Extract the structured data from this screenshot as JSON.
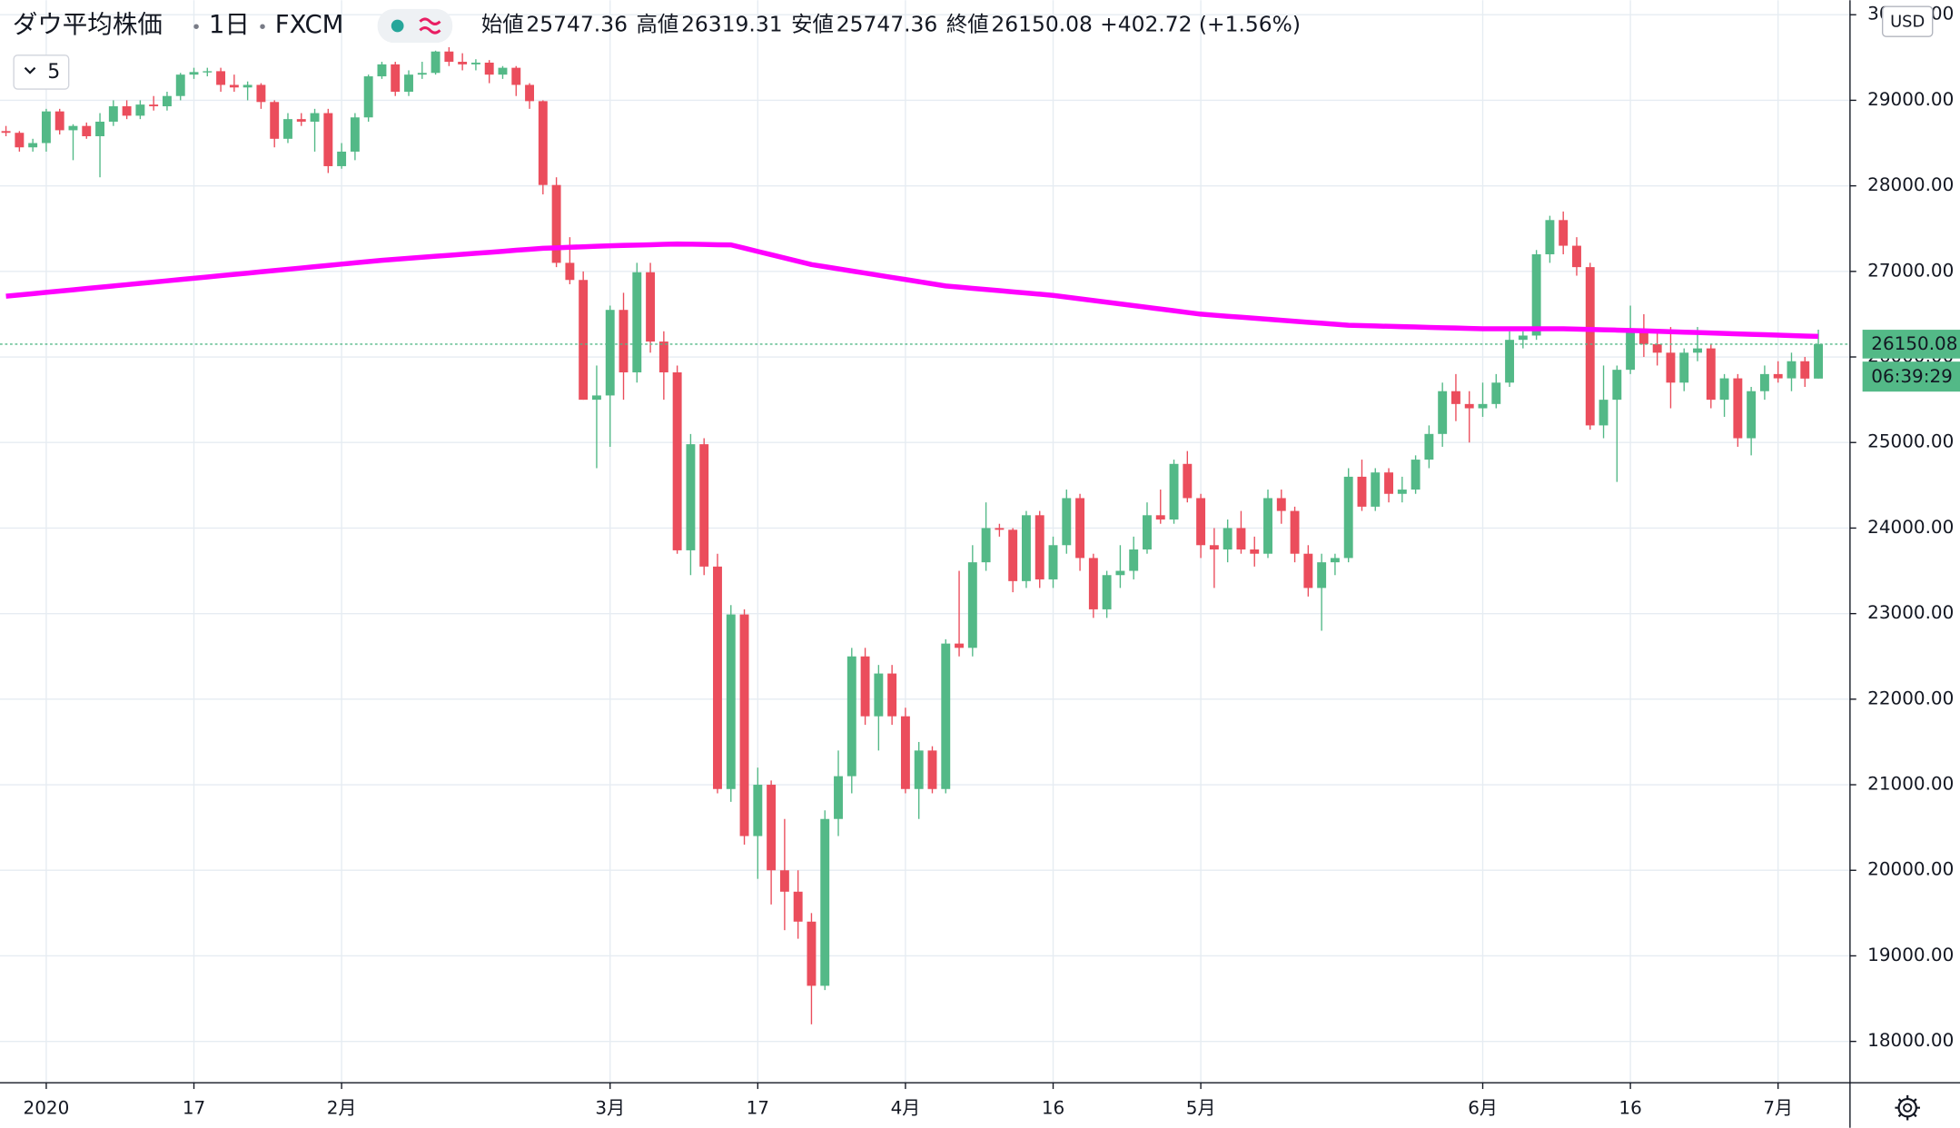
{
  "chart_data": {
    "type": "candlestick",
    "title": "ダウ平均株価",
    "interval": "1日",
    "source": "FXCM",
    "currency": "USD",
    "indicator_count": 5,
    "legend_labels": {
      "open": "始値",
      "high": "高値",
      "low": "安値",
      "close": "終値"
    },
    "change": "+402.72 (+1.56%)",
    "countdown": "06:39:29",
    "up_color": "#53b987",
    "down_color": "#eb4d5c",
    "grid": true,
    "ylim": [
      17517,
      30169
    ],
    "yticks": [
      {
        "value": 18000,
        "label": "18000.00"
      },
      {
        "value": 19000,
        "label": "19000.00"
      },
      {
        "value": 20000,
        "label": "20000.00"
      },
      {
        "value": 21000,
        "label": "21000.00"
      },
      {
        "value": 22000,
        "label": "22000.00"
      },
      {
        "value": 23000,
        "label": "23000.00"
      },
      {
        "value": 24000,
        "label": "24000.00"
      },
      {
        "value": 25000,
        "label": "25000.00"
      },
      {
        "value": 26000,
        "label": "26000.00"
      },
      {
        "value": 27000,
        "label": "27000.00"
      },
      {
        "value": 28000,
        "label": "28000.00"
      },
      {
        "value": 29000,
        "label": "29000.00"
      },
      {
        "value": 30000,
        "label": "30000.00"
      }
    ],
    "categories": [
      null,
      null,
      null,
      "2020",
      null,
      null,
      null,
      null,
      null,
      null,
      null,
      null,
      null,
      null,
      "17",
      null,
      null,
      null,
      null,
      null,
      null,
      null,
      null,
      null,
      null,
      "2月",
      null,
      null,
      null,
      null,
      null,
      null,
      null,
      null,
      null,
      null,
      null,
      null,
      null,
      null,
      null,
      null,
      null,
      null,
      null,
      "3月",
      null,
      null,
      null,
      null,
      null,
      null,
      null,
      null,
      null,
      null,
      "17",
      null,
      null,
      null,
      null,
      null,
      null,
      null,
      null,
      null,
      null,
      "4月",
      null,
      null,
      null,
      null,
      null,
      null,
      null,
      null,
      null,
      null,
      "16",
      null,
      null,
      null,
      null,
      null,
      null,
      null,
      null,
      null,
      null,
      "5月",
      null,
      null,
      null,
      null,
      null,
      null,
      null,
      null,
      null,
      null,
      null,
      null,
      null,
      null,
      null,
      null,
      null,
      null,
      null,
      null,
      "6月",
      null,
      null,
      null,
      null,
      null,
      null,
      null,
      null,
      null,
      null,
      "16",
      null,
      null,
      null,
      null,
      null,
      null,
      null,
      null,
      null,
      null,
      "7月",
      null,
      null,
      null
    ],
    "open": [
      28640,
      28620,
      28450,
      28500,
      28870,
      28650,
      28700,
      28580,
      28750,
      28930,
      28820,
      28950,
      28930,
      29050,
      29300,
      29330,
      29340,
      29180,
      29150,
      29180,
      28980,
      28550,
      28780,
      28750,
      28850,
      28230,
      28400,
      28800,
      29280,
      29420,
      29100,
      29300,
      29320,
      29570,
      29450,
      29420,
      29440,
      29300,
      29380,
      29180,
      28990,
      28010,
      27100,
      26900,
      25500,
      25550,
      26550,
      25820,
      26990,
      26180,
      25820,
      23740,
      24980,
      23550,
      20950,
      22990,
      20400,
      21000,
      20000,
      19750,
      19400,
      18650,
      20600,
      21100,
      22500,
      21800,
      22300,
      21800,
      20950,
      21400,
      20950,
      22650,
      22600,
      23600,
      24000,
      23980,
      23380,
      24150,
      23400,
      23800,
      24350,
      23650,
      23050,
      23450,
      23500,
      23750,
      24150,
      24100,
      24750,
      24350,
      23800,
      23750,
      24000,
      23750,
      23700,
      24350,
      24200,
      23700,
      23300,
      23600,
      23650,
      24600,
      24250,
      24650,
      24400,
      24450,
      24800,
      25100,
      25600,
      25450,
      25400,
      25450,
      25700,
      26200,
      26250,
      27200,
      27600,
      27300,
      27050,
      25200,
      25500,
      25850,
      26300,
      26150,
      26050,
      25700,
      26050,
      26100,
      25500,
      25750,
      25050,
      25600,
      25800,
      25750,
      25950,
      25747.36
    ],
    "high": [
      28700,
      28640,
      28550,
      28900,
      28900,
      28720,
      28740,
      28850,
      29000,
      29000,
      29000,
      29050,
      29100,
      29320,
      29380,
      29380,
      29380,
      29300,
      29220,
      29200,
      29000,
      28850,
      28850,
      28900,
      28900,
      28500,
      28850,
      29300,
      29450,
      29450,
      29350,
      29450,
      29580,
      29620,
      29550,
      29480,
      29470,
      29400,
      29400,
      29200,
      29000,
      28100,
      27400,
      27000,
      25900,
      26600,
      26750,
      27100,
      27100,
      26300,
      25900,
      25100,
      25050,
      23700,
      23100,
      23050,
      21200,
      21050,
      20600,
      20000,
      19500,
      20700,
      21400,
      22600,
      22600,
      22400,
      22400,
      21900,
      21500,
      21450,
      22700,
      23500,
      23800,
      24300,
      24050,
      24000,
      24200,
      24200,
      23900,
      24450,
      24400,
      23700,
      23500,
      23800,
      23900,
      24300,
      24450,
      24800,
      24900,
      24400,
      24000,
      24100,
      24200,
      23900,
      24450,
      24450,
      24250,
      23800,
      23700,
      23700,
      24700,
      24800,
      24700,
      24700,
      24600,
      24850,
      25200,
      25700,
      25800,
      25600,
      25700,
      25800,
      26300,
      26300,
      27250,
      27650,
      27700,
      27400,
      27100,
      25900,
      25900,
      26600,
      26500,
      26300,
      26350,
      26100,
      26350,
      26150,
      25800,
      25800,
      25650,
      25900,
      25950,
      26050,
      26000,
      26319.31
    ],
    "low": [
      28580,
      28400,
      28400,
      28400,
      28600,
      28300,
      28550,
      28100,
      28700,
      28780,
      28780,
      28880,
      28880,
      29000,
      29250,
      29280,
      29100,
      29100,
      29000,
      28900,
      28450,
      28500,
      28700,
      28400,
      28150,
      28200,
      28300,
      28750,
      29250,
      29050,
      29050,
      29250,
      29300,
      29400,
      29350,
      29350,
      29200,
      29250,
      29050,
      28900,
      27900,
      27050,
      26850,
      25500,
      24700,
      24950,
      25500,
      25700,
      26050,
      25500,
      23700,
      23450,
      23450,
      20900,
      20800,
      20300,
      19900,
      19600,
      19300,
      19200,
      18200,
      18600,
      20400,
      20900,
      21700,
      21400,
      21700,
      20900,
      20600,
      20900,
      20900,
      22500,
      22500,
      23500,
      23900,
      23250,
      23300,
      23300,
      23300,
      23700,
      23500,
      22950,
      22950,
      23300,
      23400,
      23700,
      24050,
      24050,
      24300,
      23650,
      23300,
      23600,
      23700,
      23550,
      23650,
      24050,
      23600,
      23200,
      22800,
      23450,
      23600,
      24200,
      24200,
      24300,
      24300,
      24400,
      24700,
      24950,
      25250,
      25000,
      25300,
      25400,
      25650,
      26100,
      26200,
      27100,
      27200,
      26950,
      25150,
      25050,
      24540,
      25800,
      26000,
      25900,
      25400,
      25600,
      25950,
      25400,
      25300,
      24950,
      24850,
      25500,
      25700,
      25600,
      25650,
      25747.36
    ],
    "close": [
      28620,
      28450,
      28500,
      28870,
      28650,
      28700,
      28580,
      28750,
      28930,
      28820,
      28950,
      28930,
      29050,
      29300,
      29330,
      29340,
      29180,
      29150,
      29180,
      28980,
      28550,
      28780,
      28750,
      28850,
      28230,
      28400,
      28800,
      29280,
      29420,
      29100,
      29300,
      29320,
      29570,
      29450,
      29420,
      29440,
      29300,
      29380,
      29180,
      28990,
      28010,
      27100,
      26900,
      25500,
      25550,
      26550,
      25820,
      26990,
      26180,
      25820,
      23740,
      24980,
      23550,
      20950,
      22990,
      20400,
      21000,
      20000,
      19750,
      19400,
      18650,
      20600,
      21100,
      22500,
      21800,
      22300,
      21800,
      20950,
      21400,
      20950,
      22650,
      22600,
      23600,
      24000,
      23980,
      23380,
      24150,
      23400,
      23800,
      24350,
      23650,
      23050,
      23450,
      23500,
      23750,
      24150,
      24100,
      24750,
      24350,
      23800,
      23750,
      24000,
      23750,
      23700,
      24350,
      24200,
      23700,
      23300,
      23600,
      23650,
      24600,
      24250,
      24650,
      24400,
      24450,
      24800,
      25100,
      25600,
      25450,
      25400,
      25450,
      25700,
      26200,
      26250,
      27200,
      27600,
      27300,
      27050,
      25200,
      25500,
      25850,
      26300,
      26150,
      26050,
      25700,
      26050,
      26100,
      25500,
      25750,
      25050,
      25600,
      25800,
      25750,
      25950,
      25747.36,
      26150.08
    ],
    "ma": {
      "color": "#ff00ff",
      "values": [
        26710,
        26725,
        26740,
        26755,
        26770,
        26785,
        26800,
        26815,
        26830,
        26845,
        26860,
        26875,
        26890,
        26905,
        26920,
        26935,
        26950,
        26965,
        26980,
        26995,
        27010,
        27025,
        27040,
        27055,
        27070,
        27085,
        27100,
        27115,
        27130,
        27142,
        27153,
        27165,
        27177,
        27188,
        27200,
        27212,
        27223,
        27235,
        27247,
        27258,
        27270,
        27276,
        27282,
        27288,
        27294,
        27300,
        27304,
        27308,
        27312,
        27316,
        27320,
        27318,
        27315,
        27312,
        27310,
        27272,
        27233,
        27195,
        27157,
        27118,
        27080,
        27055,
        27030,
        27005,
        26980,
        26955,
        26930,
        26905,
        26880,
        26855,
        26830,
        26816,
        26802,
        26789,
        26775,
        26761,
        26747,
        26734,
        26720,
        26700,
        26680,
        26660,
        26640,
        26620,
        26600,
        26580,
        26560,
        26540,
        26520,
        26500,
        26488,
        26476,
        26465,
        26453,
        26441,
        26429,
        26417,
        26405,
        26394,
        26382,
        26370,
        26366,
        26362,
        26358,
        26354,
        26350,
        26346,
        26342,
        26338,
        26334,
        26330,
        26330,
        26330,
        26330,
        26330,
        26330,
        26330,
        26326,
        26322,
        26318,
        26314,
        26310,
        26305,
        26300,
        26295,
        26290,
        26285,
        26280,
        26275,
        26270,
        26265,
        26260,
        26255,
        26250,
        26245,
        26240
      ]
    }
  }
}
